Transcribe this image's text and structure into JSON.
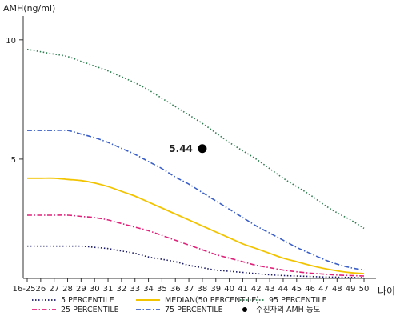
{
  "chart_data": {
    "type": "line",
    "title": "",
    "ylabel": "AMH(ng/ml)",
    "xlabel": "나이",
    "ylim": [
      0,
      11
    ],
    "yticks": [
      5,
      10
    ],
    "x_tick_labels": [
      "16-25",
      "26",
      "27",
      "28",
      "29",
      "30",
      "31",
      "32",
      "33",
      "34",
      "35",
      "36",
      "37",
      "38",
      "39",
      "40",
      "41",
      "42",
      "43",
      "44",
      "45",
      "46",
      "47",
      "48",
      "49",
      "50"
    ],
    "series": [
      {
        "name": "5 PERCENTILE",
        "color": "#1a1a66",
        "dash": "dot",
        "values": [
          1.35,
          1.35,
          1.35,
          1.35,
          1.35,
          1.3,
          1.25,
          1.15,
          1.05,
          0.9,
          0.8,
          0.7,
          0.55,
          0.45,
          0.35,
          0.3,
          0.25,
          0.2,
          0.15,
          0.12,
          0.1,
          0.08,
          0.06,
          0.05,
          0.04,
          0.03
        ]
      },
      {
        "name": "25 PERCENTILE",
        "color": "#e0217a",
        "dash": "dashdot",
        "values": [
          2.65,
          2.65,
          2.65,
          2.65,
          2.6,
          2.55,
          2.45,
          2.3,
          2.15,
          2.0,
          1.8,
          1.6,
          1.4,
          1.2,
          1.0,
          0.85,
          0.7,
          0.55,
          0.45,
          0.35,
          0.28,
          0.22,
          0.18,
          0.14,
          0.12,
          0.1
        ]
      },
      {
        "name": "MEDIAN(50 PERCENTILE)",
        "color": "#f2c400",
        "dash": "solid",
        "values": [
          4.2,
          4.2,
          4.2,
          4.15,
          4.1,
          4.0,
          3.85,
          3.65,
          3.45,
          3.2,
          2.95,
          2.7,
          2.45,
          2.2,
          1.95,
          1.7,
          1.45,
          1.25,
          1.05,
          0.85,
          0.7,
          0.55,
          0.42,
          0.32,
          0.24,
          0.2
        ]
      },
      {
        "name": "75 PERCENTILE",
        "color": "#3a5fc8",
        "dash": "dashdot",
        "values": [
          6.2,
          6.2,
          6.2,
          6.2,
          6.05,
          5.9,
          5.7,
          5.45,
          5.2,
          4.9,
          4.6,
          4.25,
          3.95,
          3.6,
          3.25,
          2.9,
          2.55,
          2.2,
          1.9,
          1.6,
          1.3,
          1.05,
          0.8,
          0.6,
          0.45,
          0.35
        ]
      },
      {
        "name": "95 PERCENTILE",
        "color": "#2e7d4f",
        "dash": "dot",
        "values": [
          9.6,
          9.5,
          9.4,
          9.3,
          9.1,
          8.9,
          8.7,
          8.45,
          8.2,
          7.9,
          7.55,
          7.2,
          6.85,
          6.5,
          6.1,
          5.7,
          5.35,
          5.0,
          4.6,
          4.2,
          3.85,
          3.5,
          3.1,
          2.75,
          2.45,
          2.1
        ]
      }
    ],
    "marker": {
      "name": "수진자의 AMH 농도",
      "x_index": 13,
      "value": 5.44,
      "label": "5.44",
      "color": "#000000"
    },
    "legend": {
      "placement": "bottom",
      "items": [
        {
          "label": "5 PERCENTILE",
          "series": 0
        },
        {
          "label": "25 PERCENTILE",
          "series": 1
        },
        {
          "label": "MEDIAN(50 PERCENTILE)",
          "series": 2
        },
        {
          "label": "75 PERCENTILE",
          "series": 3
        },
        {
          "label": "95 PERCENTILE",
          "series": 4
        },
        {
          "label": "수진자의 AMH 농도",
          "marker": true
        }
      ]
    }
  }
}
